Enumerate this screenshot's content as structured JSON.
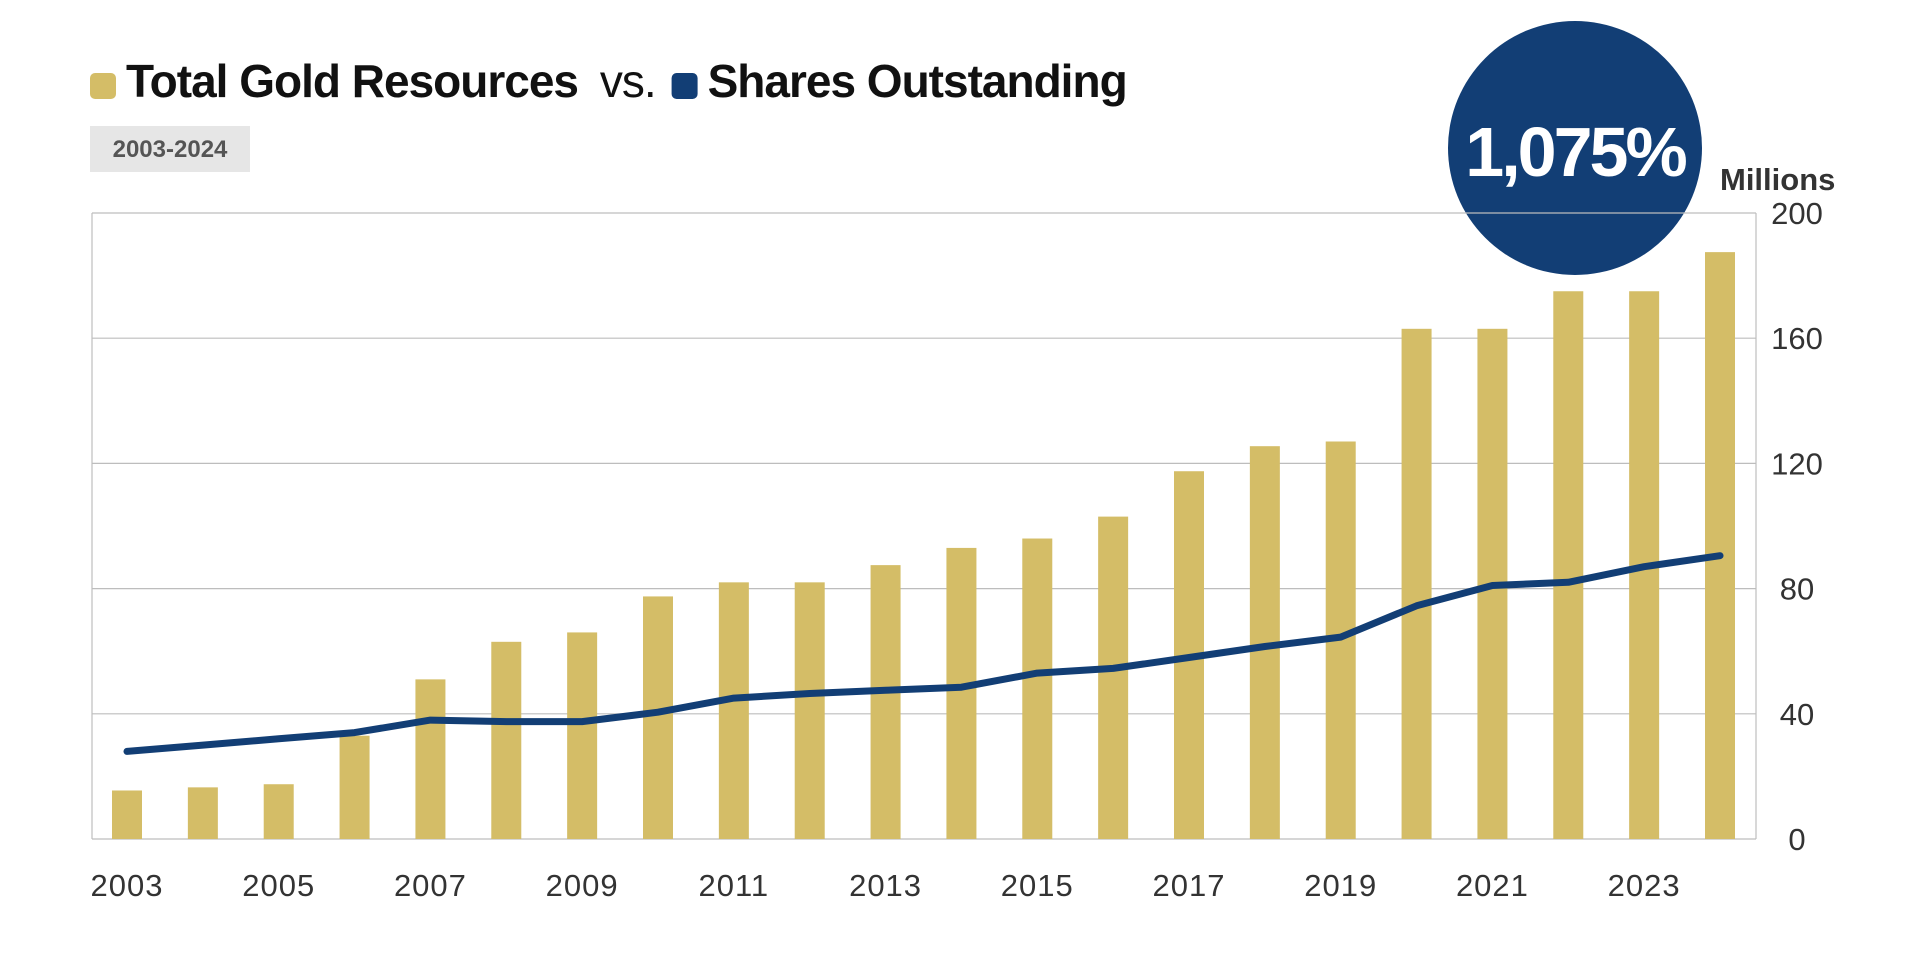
{
  "title": {
    "series1_label": "Total Gold Resources",
    "connector": "vs.",
    "series2_label": "Shares Outstanding"
  },
  "subtitle_badge": "2003-2024",
  "callout": "1,075%",
  "unit_label": "Millions",
  "colors": {
    "gold": "#D4BD67",
    "navy": "#123E75",
    "grid": "#BDBDBD",
    "axis_text": "#333333",
    "badge_bg": "#E6E6E6",
    "badge_text": "#555555"
  },
  "chart_data": {
    "type": "bar",
    "title": "Total Gold Resources vs. Shares Outstanding",
    "subtitle": "2003-2024",
    "x": [
      2003,
      2004,
      2005,
      2006,
      2007,
      2008,
      2009,
      2010,
      2011,
      2012,
      2013,
      2014,
      2015,
      2016,
      2017,
      2018,
      2019,
      2020,
      2021,
      2022,
      2023,
      2024
    ],
    "x_tick_labels": [
      "2003",
      "2005",
      "2007",
      "2009",
      "2011",
      "2013",
      "2015",
      "2017",
      "2019",
      "2021",
      "2023"
    ],
    "ylabel": "Millions",
    "ylim": [
      0,
      200
    ],
    "y_ticks": [
      0,
      40,
      80,
      120,
      160,
      200
    ],
    "y_axis_side": "right",
    "grid": true,
    "legend": "title",
    "series": [
      {
        "name": "Total Gold Resources",
        "type": "bar",
        "color": "#D4BD67",
        "values": [
          15.5,
          16.5,
          17.5,
          33,
          51,
          63,
          66,
          77.5,
          82,
          82,
          87.5,
          93,
          96,
          103,
          117.5,
          125.5,
          127,
          163,
          163,
          175,
          175,
          187.5
        ]
      },
      {
        "name": "Shares Outstanding",
        "type": "line",
        "color": "#123E75",
        "values": [
          28,
          30,
          32,
          34,
          38,
          37.5,
          37.5,
          40.5,
          45,
          46.5,
          47.5,
          48.5,
          53,
          54.5,
          58,
          61.5,
          64.5,
          74.5,
          81,
          82,
          87,
          90.5
        ]
      }
    ]
  }
}
